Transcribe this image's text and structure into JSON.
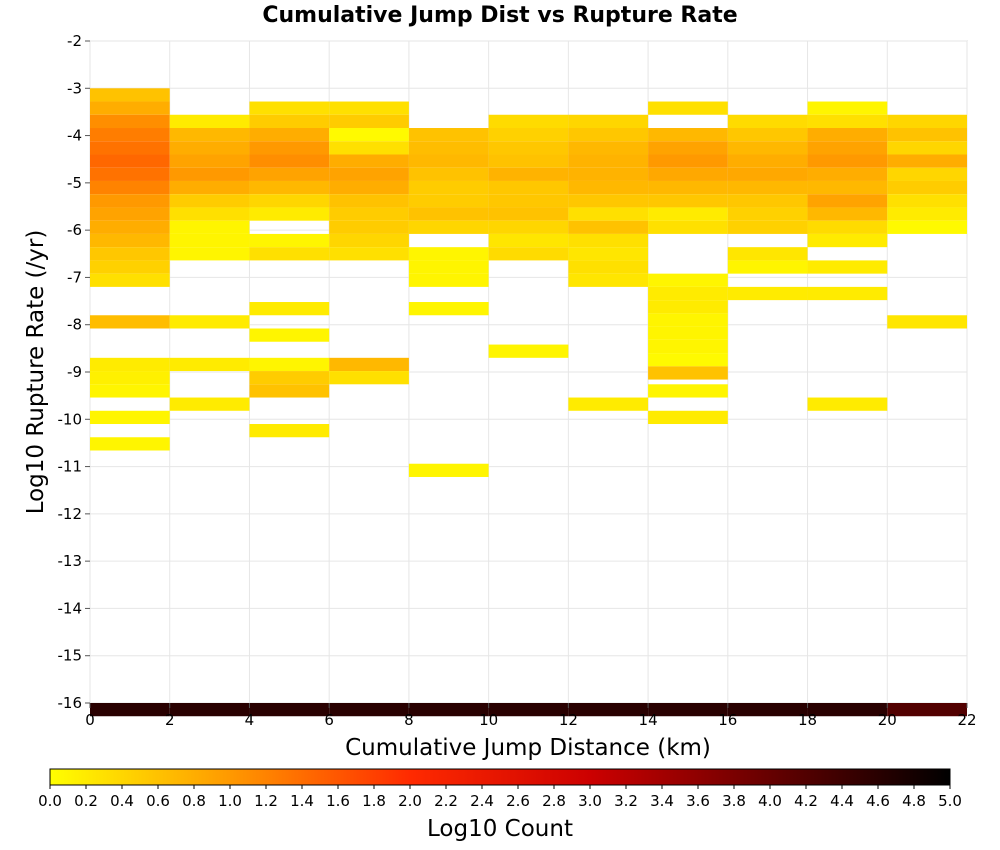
{
  "chart_data": {
    "type": "heatmap",
    "title": "Cumulative Jump Dist vs Rupture Rate",
    "xlabel": "Cumulative Jump Distance (km)",
    "ylabel": "Log10 Rupture Rate (/yr)",
    "xlim": [
      0,
      22
    ],
    "ylim": [
      -16,
      -2
    ],
    "x_ticks": [
      "0",
      "2",
      "4",
      "6",
      "8",
      "10",
      "12",
      "14",
      "16",
      "18",
      "20",
      "22"
    ],
    "y_ticks": [
      "-2",
      "-3",
      "-4",
      "-5",
      "-6",
      "-7",
      "-8",
      "-9",
      "-10",
      "-11",
      "-12",
      "-13",
      "-14",
      "-15",
      "-16"
    ],
    "x_bin_width": 2,
    "y_bin_height": 0.28,
    "grid": true,
    "colorbar": {
      "label": "Log10 Count",
      "min": 0,
      "max": 5,
      "ticks": [
        "0.0",
        "0.2",
        "0.4",
        "0.6",
        "0.8",
        "1.0",
        "1.2",
        "1.4",
        "1.6",
        "1.8",
        "2.0",
        "2.2",
        "2.4",
        "2.6",
        "2.8",
        "3.0",
        "3.2",
        "3.4",
        "3.6",
        "3.8",
        "4.0",
        "4.2",
        "4.4",
        "4.6",
        "4.8",
        "5.0"
      ],
      "colormap": [
        "#ffff00",
        "#ff9900",
        "#ff2a00",
        "#cc0000",
        "#660000",
        "#000000"
      ]
    },
    "cells_note": "Each column entry: x = bin start (km), cells = [y bin top (log10 rate), log10 count]",
    "columns": [
      {
        "x": 0,
        "cells": [
          [
            -3.0,
            0.6
          ],
          [
            -3.28,
            0.8
          ],
          [
            -3.56,
            1.1
          ],
          [
            -3.84,
            1.25
          ],
          [
            -4.12,
            1.35
          ],
          [
            -4.4,
            1.45
          ],
          [
            -4.68,
            1.35
          ],
          [
            -4.96,
            1.2
          ],
          [
            -5.24,
            1.0
          ],
          [
            -5.52,
            0.9
          ],
          [
            -5.8,
            0.8
          ],
          [
            -6.08,
            0.7
          ],
          [
            -6.36,
            0.55
          ],
          [
            -6.64,
            0.45
          ],
          [
            -6.92,
            0.3
          ],
          [
            -7.8,
            0.65
          ],
          [
            -8.7,
            0.2
          ],
          [
            -8.98,
            0.15
          ],
          [
            -9.26,
            0.1
          ],
          [
            -9.82,
            0.1
          ],
          [
            -10.38,
            0.1
          ],
          [
            -16.0,
            4.6
          ]
        ]
      },
      {
        "x": 2,
        "cells": [
          [
            -3.56,
            0.2
          ],
          [
            -3.84,
            0.7
          ],
          [
            -4.12,
            0.8
          ],
          [
            -4.4,
            0.9
          ],
          [
            -4.68,
            1.0
          ],
          [
            -4.96,
            0.8
          ],
          [
            -5.24,
            0.5
          ],
          [
            -5.52,
            0.3
          ],
          [
            -5.8,
            0.1
          ],
          [
            -6.08,
            0.1
          ],
          [
            -6.36,
            0.1
          ],
          [
            -7.8,
            0.2
          ],
          [
            -8.7,
            0.2
          ],
          [
            -9.54,
            0.2
          ],
          [
            -16.0,
            4.6
          ]
        ]
      },
      {
        "x": 4,
        "cells": [
          [
            -3.28,
            0.3
          ],
          [
            -3.56,
            0.5
          ],
          [
            -3.84,
            0.8
          ],
          [
            -4.12,
            1.0
          ],
          [
            -4.4,
            1.1
          ],
          [
            -4.68,
            0.9
          ],
          [
            -4.96,
            0.7
          ],
          [
            -5.24,
            0.4
          ],
          [
            -5.52,
            0.2
          ],
          [
            -6.08,
            0.1
          ],
          [
            -6.36,
            0.3
          ],
          [
            -7.52,
            0.2
          ],
          [
            -8.08,
            0.1
          ],
          [
            -8.7,
            0.1
          ],
          [
            -8.98,
            0.5
          ],
          [
            -9.26,
            0.6
          ],
          [
            -10.1,
            0.2
          ],
          [
            -16.0,
            4.6
          ]
        ]
      },
      {
        "x": 6,
        "cells": [
          [
            -3.28,
            0.3
          ],
          [
            -3.56,
            0.5
          ],
          [
            -3.84,
            0.05
          ],
          [
            -4.12,
            0.3
          ],
          [
            -4.4,
            0.8
          ],
          [
            -4.68,
            0.9
          ],
          [
            -4.96,
            0.8
          ],
          [
            -5.24,
            0.6
          ],
          [
            -5.52,
            0.5
          ],
          [
            -5.8,
            0.5
          ],
          [
            -6.08,
            0.4
          ],
          [
            -6.36,
            0.3
          ],
          [
            -8.7,
            0.7
          ],
          [
            -8.98,
            0.3
          ],
          [
            -16.0,
            4.6
          ]
        ]
      },
      {
        "x": 8,
        "cells": [
          [
            -3.84,
            0.6
          ],
          [
            -4.12,
            0.65
          ],
          [
            -4.4,
            0.7
          ],
          [
            -4.68,
            0.6
          ],
          [
            -4.96,
            0.5
          ],
          [
            -5.24,
            0.5
          ],
          [
            -5.52,
            0.6
          ],
          [
            -5.8,
            0.4
          ],
          [
            -6.36,
            0.1
          ],
          [
            -6.64,
            0.1
          ],
          [
            -6.92,
            0.1
          ],
          [
            -7.52,
            0.1
          ],
          [
            -10.94,
            0.1
          ],
          [
            -16.0,
            4.6
          ]
        ]
      },
      {
        "x": 10,
        "cells": [
          [
            -3.56,
            0.35
          ],
          [
            -3.84,
            0.45
          ],
          [
            -4.12,
            0.55
          ],
          [
            -4.4,
            0.6
          ],
          [
            -4.68,
            0.75
          ],
          [
            -4.96,
            0.55
          ],
          [
            -5.24,
            0.55
          ],
          [
            -5.52,
            0.6
          ],
          [
            -5.8,
            0.4
          ],
          [
            -6.08,
            0.25
          ],
          [
            -6.36,
            0.35
          ],
          [
            -8.42,
            0.1
          ],
          [
            -16.0,
            4.6
          ]
        ]
      },
      {
        "x": 12,
        "cells": [
          [
            -3.56,
            0.4
          ],
          [
            -3.84,
            0.55
          ],
          [
            -4.12,
            0.7
          ],
          [
            -4.4,
            0.75
          ],
          [
            -4.68,
            0.75
          ],
          [
            -4.96,
            0.7
          ],
          [
            -5.24,
            0.55
          ],
          [
            -5.52,
            0.3
          ],
          [
            -5.8,
            0.6
          ],
          [
            -6.08,
            0.3
          ],
          [
            -6.36,
            0.25
          ],
          [
            -6.64,
            0.3
          ],
          [
            -6.92,
            0.25
          ],
          [
            -9.54,
            0.2
          ],
          [
            -16.0,
            4.6
          ]
        ]
      },
      {
        "x": 14,
        "cells": [
          [
            -3.28,
            0.3
          ],
          [
            -3.84,
            0.7
          ],
          [
            -4.12,
            0.9
          ],
          [
            -4.4,
            1.0
          ],
          [
            -4.68,
            0.85
          ],
          [
            -4.96,
            0.7
          ],
          [
            -5.24,
            0.55
          ],
          [
            -5.52,
            0.2
          ],
          [
            -5.8,
            0.3
          ],
          [
            -6.92,
            0.1
          ],
          [
            -7.2,
            0.2
          ],
          [
            -7.48,
            0.2
          ],
          [
            -7.76,
            0.1
          ],
          [
            -8.04,
            0.1
          ],
          [
            -8.32,
            0.1
          ],
          [
            -8.6,
            0.05
          ],
          [
            -8.88,
            0.6
          ],
          [
            -9.26,
            0.1
          ],
          [
            -9.82,
            0.2
          ],
          [
            -16.0,
            4.6
          ]
        ]
      },
      {
        "x": 16,
        "cells": [
          [
            -3.56,
            0.35
          ],
          [
            -3.84,
            0.55
          ],
          [
            -4.12,
            0.7
          ],
          [
            -4.4,
            0.8
          ],
          [
            -4.68,
            0.85
          ],
          [
            -4.96,
            0.7
          ],
          [
            -5.24,
            0.55
          ],
          [
            -5.52,
            0.45
          ],
          [
            -5.8,
            0.45
          ],
          [
            -6.36,
            0.25
          ],
          [
            -6.64,
            0.1
          ],
          [
            -7.2,
            0.2
          ],
          [
            -16.0,
            4.6
          ]
        ]
      },
      {
        "x": 18,
        "cells": [
          [
            -3.28,
            0.1
          ],
          [
            -3.56,
            0.3
          ],
          [
            -3.84,
            0.8
          ],
          [
            -4.12,
            0.9
          ],
          [
            -4.4,
            1.0
          ],
          [
            -4.68,
            0.8
          ],
          [
            -4.96,
            0.7
          ],
          [
            -5.24,
            0.9
          ],
          [
            -5.52,
            0.7
          ],
          [
            -5.8,
            0.35
          ],
          [
            -6.08,
            0.2
          ],
          [
            -6.64,
            0.2
          ],
          [
            -7.2,
            0.2
          ],
          [
            -9.54,
            0.2
          ],
          [
            -16.0,
            4.6
          ]
        ]
      },
      {
        "x": 20,
        "cells": [
          [
            -3.56,
            0.4
          ],
          [
            -3.84,
            0.6
          ],
          [
            -4.12,
            0.4
          ],
          [
            -4.4,
            0.8
          ],
          [
            -4.68,
            0.4
          ],
          [
            -4.96,
            0.5
          ],
          [
            -5.24,
            0.3
          ],
          [
            -5.52,
            0.2
          ],
          [
            -5.8,
            0.05
          ],
          [
            -7.8,
            0.25
          ],
          [
            -16.0,
            4.2
          ]
        ]
      }
    ]
  }
}
